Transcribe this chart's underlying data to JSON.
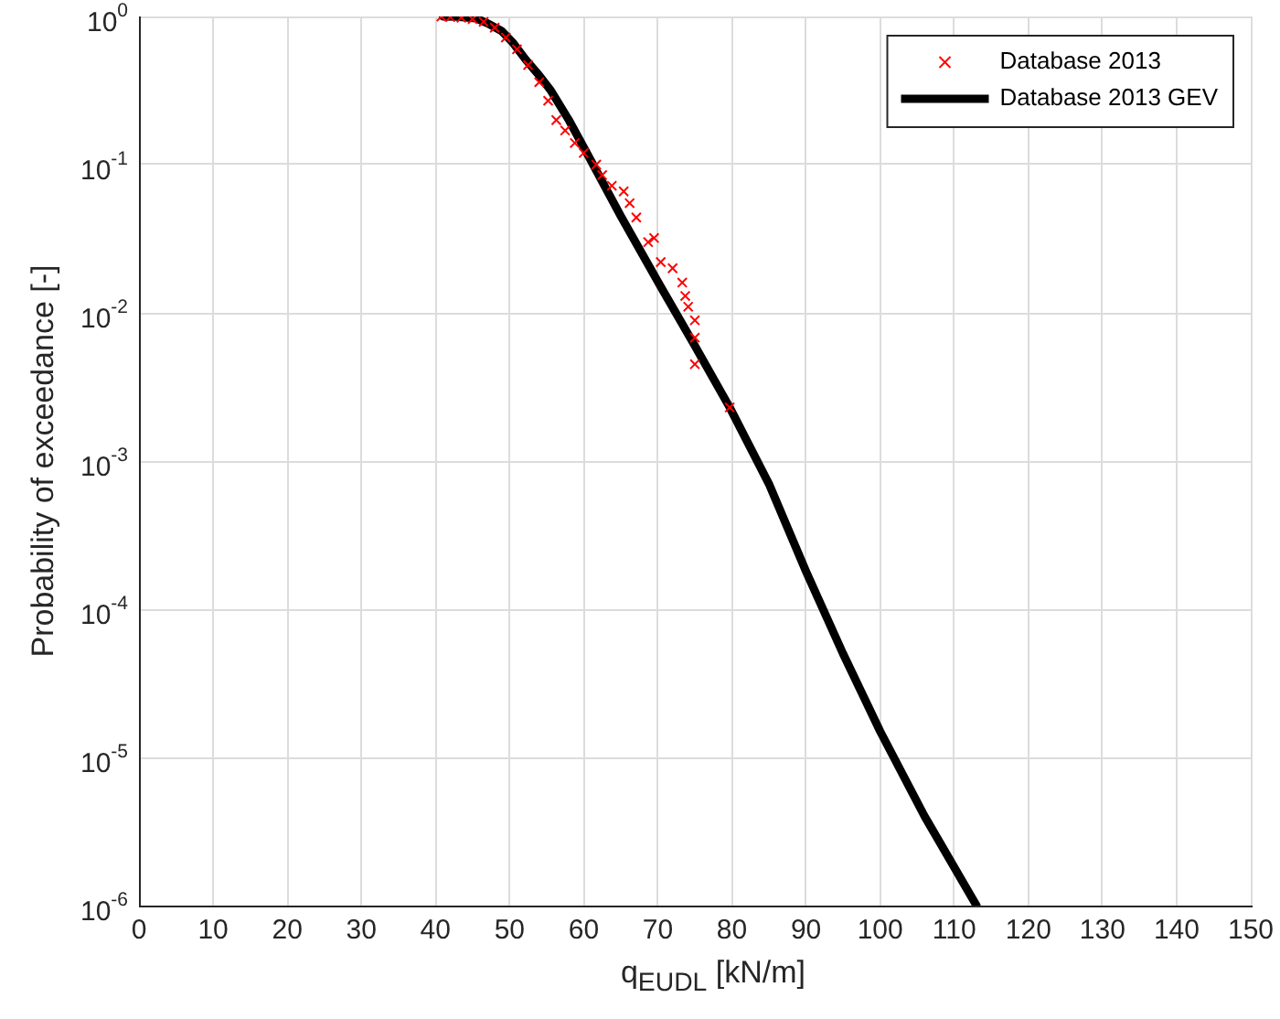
{
  "chart_data": {
    "type": "scatter",
    "xlabel": "q$_{EUDL}$ [kN/m]",
    "ylabel": "Probability of exceedance [-]",
    "log": "y",
    "grid": true,
    "legend": "top right",
    "xlim": [
      0,
      150
    ],
    "xticks": [
      0,
      10,
      20,
      30,
      40,
      50,
      60,
      70,
      80,
      90,
      100,
      110,
      120,
      130,
      140,
      150
    ],
    "ylim": [
      1e-06,
      1
    ],
    "yticks": [
      {
        "value": 1e-06,
        "label": "10$^{-6}$"
      },
      {
        "value": 1e-05,
        "label": "10$^{-5}$"
      },
      {
        "value": 0.0001,
        "label": "10$^{-4}$"
      },
      {
        "value": 0.001,
        "label": "10$^{-3}$"
      },
      {
        "value": 0.01,
        "label": "10$^{-2}$"
      },
      {
        "value": 0.1,
        "label": "10$^{-1}$"
      },
      {
        "value": 1,
        "label": "10$^{0}$"
      }
    ],
    "series": [
      {
        "name": "Database 2013",
        "marker": "cross",
        "color": "#ff0000",
        "x": [
          40.8,
          42,
          43.5,
          45,
          46.5,
          48,
          49.5,
          51,
          52.5,
          54,
          55.2,
          56.3,
          57.5,
          58.8,
          60,
          61.7,
          62.5,
          63.8,
          65.4,
          66.2,
          67.1,
          68.7,
          69.5,
          70.4,
          72,
          73.3,
          73.7,
          74.1,
          75,
          75,
          75,
          79.7
        ],
        "values": [
          1,
          0.99,
          0.98,
          0.96,
          0.92,
          0.84,
          0.72,
          0.6,
          0.47,
          0.36,
          0.27,
          0.2,
          0.17,
          0.14,
          0.12,
          0.1,
          0.085,
          0.072,
          0.066,
          0.055,
          0.044,
          0.03,
          0.032,
          0.022,
          0.02,
          0.016,
          0.013,
          0.011,
          0.0089,
          0.0068,
          0.0045,
          0.0023
        ]
      },
      {
        "name": "Database 2013 GEV",
        "type": "line",
        "marker": "none",
        "line_style": "solid",
        "color": "#000000",
        "x": [
          41,
          43,
          45.5,
          47,
          48.9,
          50.5,
          52.2,
          54,
          55.5,
          58,
          60.5,
          65,
          70.4,
          75,
          79.7,
          85,
          90,
          95,
          100,
          106,
          113
        ],
        "values": [
          1,
          0.995,
          0.97,
          0.9,
          0.8,
          0.66,
          0.51,
          0.4,
          0.32,
          0.2,
          0.118,
          0.045,
          0.015,
          0.006,
          0.0023,
          0.0007,
          0.00018,
          5e-05,
          1.5e-05,
          4e-06,
          1e-06
        ]
      }
    ]
  }
}
